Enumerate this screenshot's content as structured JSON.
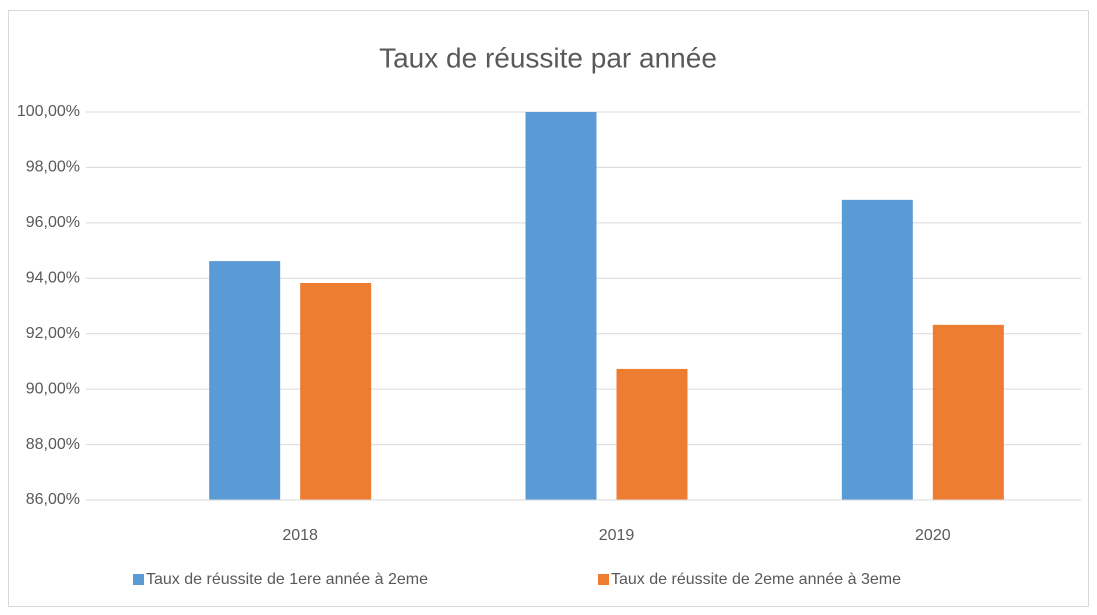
{
  "chart_data": {
    "type": "bar",
    "title": "Taux de réussite par année",
    "categories": [
      "2018",
      "2019",
      "2020"
    ],
    "series": [
      {
        "name": "Taux de réussite de 1ere année à 2eme",
        "color": "#5b9bd5",
        "values": [
          94.62,
          100,
          96.83
        ]
      },
      {
        "name": "Taux de réussite de 2eme année à 3eme",
        "color": "#ed7d31",
        "values": [
          93.83,
          90.73,
          92.32
        ]
      }
    ],
    "ylim": [
      86,
      100
    ],
    "yticks": [
      {
        "value": 86,
        "label": "86,00%"
      },
      {
        "value": 88,
        "label": "88,00%"
      },
      {
        "value": 90,
        "label": "90,00%"
      },
      {
        "value": 92,
        "label": "92,00%"
      },
      {
        "value": 94,
        "label": "94,00%"
      },
      {
        "value": 96,
        "label": "96,00%"
      },
      {
        "value": 98,
        "label": "98,00%"
      },
      {
        "value": 100,
        "label": "100,00%"
      }
    ],
    "grid": true,
    "legend": "bottom"
  }
}
